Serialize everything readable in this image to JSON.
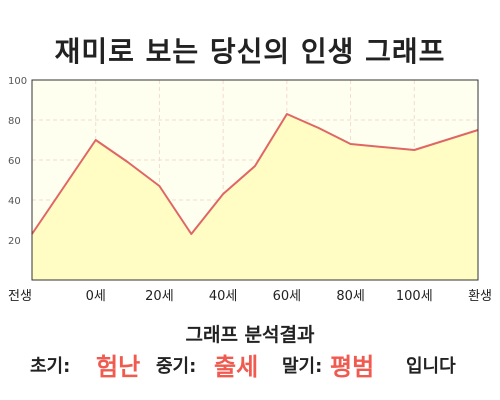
{
  "title": "재미로 보는 당신의 인생 그래프",
  "chart_data": {
    "type": "area",
    "x_ticks": [
      "전생",
      "0세",
      "20세",
      "40세",
      "60세",
      "80세",
      "100세",
      "환생"
    ],
    "y_ticks": [
      "100",
      "80",
      "60",
      "40",
      "20"
    ],
    "ylim": [
      0,
      100
    ],
    "grid": true,
    "colors": {
      "line": "#e06666",
      "fill": "#fffdc4",
      "plot_bg": "#fffff0",
      "grid": "#f0ddd0"
    },
    "points": [
      {
        "x": "전생",
        "y": 23
      },
      {
        "x": "0세",
        "y": 70
      },
      {
        "x": "0세–20세",
        "y": 59
      },
      {
        "x": "20세",
        "y": 47
      },
      {
        "x": "20세–40세",
        "y": 23
      },
      {
        "x": "40세",
        "y": 43
      },
      {
        "x": "40세–60세",
        "y": 57
      },
      {
        "x": "60세",
        "y": 83
      },
      {
        "x": "60세–80세",
        "y": 76
      },
      {
        "x": "80세",
        "y": 68
      },
      {
        "x": "100세",
        "y": 65
      },
      {
        "x": "환생",
        "y": 75
      }
    ]
  },
  "results": {
    "heading": "그래프 분석결과",
    "early_label": "초기:",
    "early_value": "험난",
    "mid_label": "중기:",
    "mid_value": "출세",
    "late_label": "말기:",
    "late_value": "평범",
    "suffix": "입니다"
  }
}
